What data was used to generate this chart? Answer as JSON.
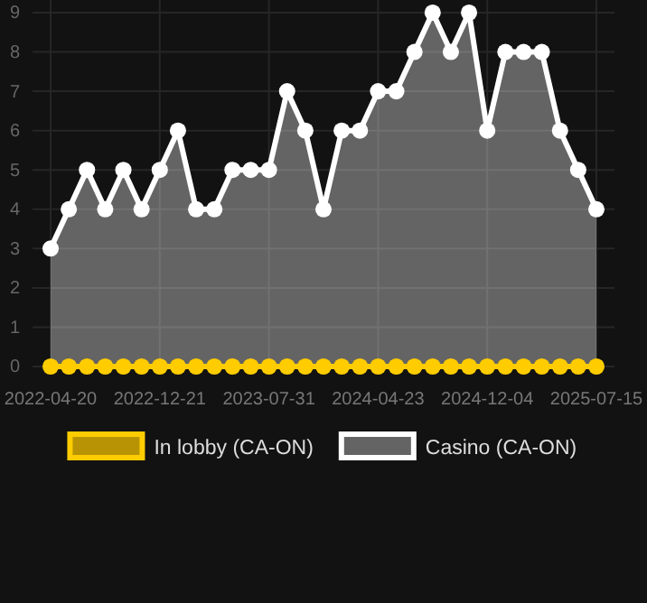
{
  "chart_data": {
    "type": "line",
    "categories": [
      "2022-04-20",
      null,
      null,
      null,
      null,
      null,
      "2022-12-21",
      null,
      null,
      null,
      null,
      null,
      "2023-07-31",
      null,
      null,
      null,
      null,
      null,
      "2024-04-23",
      null,
      null,
      null,
      null,
      null,
      "2024-12-04",
      null,
      null,
      null,
      null,
      null,
      "2025-07-15"
    ],
    "series": [
      {
        "name": "In lobby (CA-ON)",
        "color": "#ffcc00",
        "values": [
          0,
          0,
          0,
          0,
          0,
          0,
          0,
          0,
          0,
          0,
          0,
          0,
          0,
          0,
          0,
          0,
          0,
          0,
          0,
          0,
          0,
          0,
          0,
          0,
          0,
          0,
          0,
          0,
          0,
          0,
          0
        ]
      },
      {
        "name": "Casino (CA-ON)",
        "type": "area",
        "color": "#ffffff",
        "values": [
          3,
          4,
          5,
          4,
          5,
          4,
          5,
          6,
          4,
          4,
          5,
          5,
          5,
          7,
          6,
          4,
          6,
          6,
          7,
          7,
          8,
          9,
          8,
          9,
          6,
          8,
          8,
          8,
          6,
          5,
          4
        ]
      }
    ],
    "ylim": [
      0,
      9
    ],
    "yticks": [
      0,
      1,
      2,
      3,
      4,
      5,
      6,
      7,
      8,
      9
    ],
    "grid": true,
    "legend": "bottom",
    "marker": "circle"
  }
}
